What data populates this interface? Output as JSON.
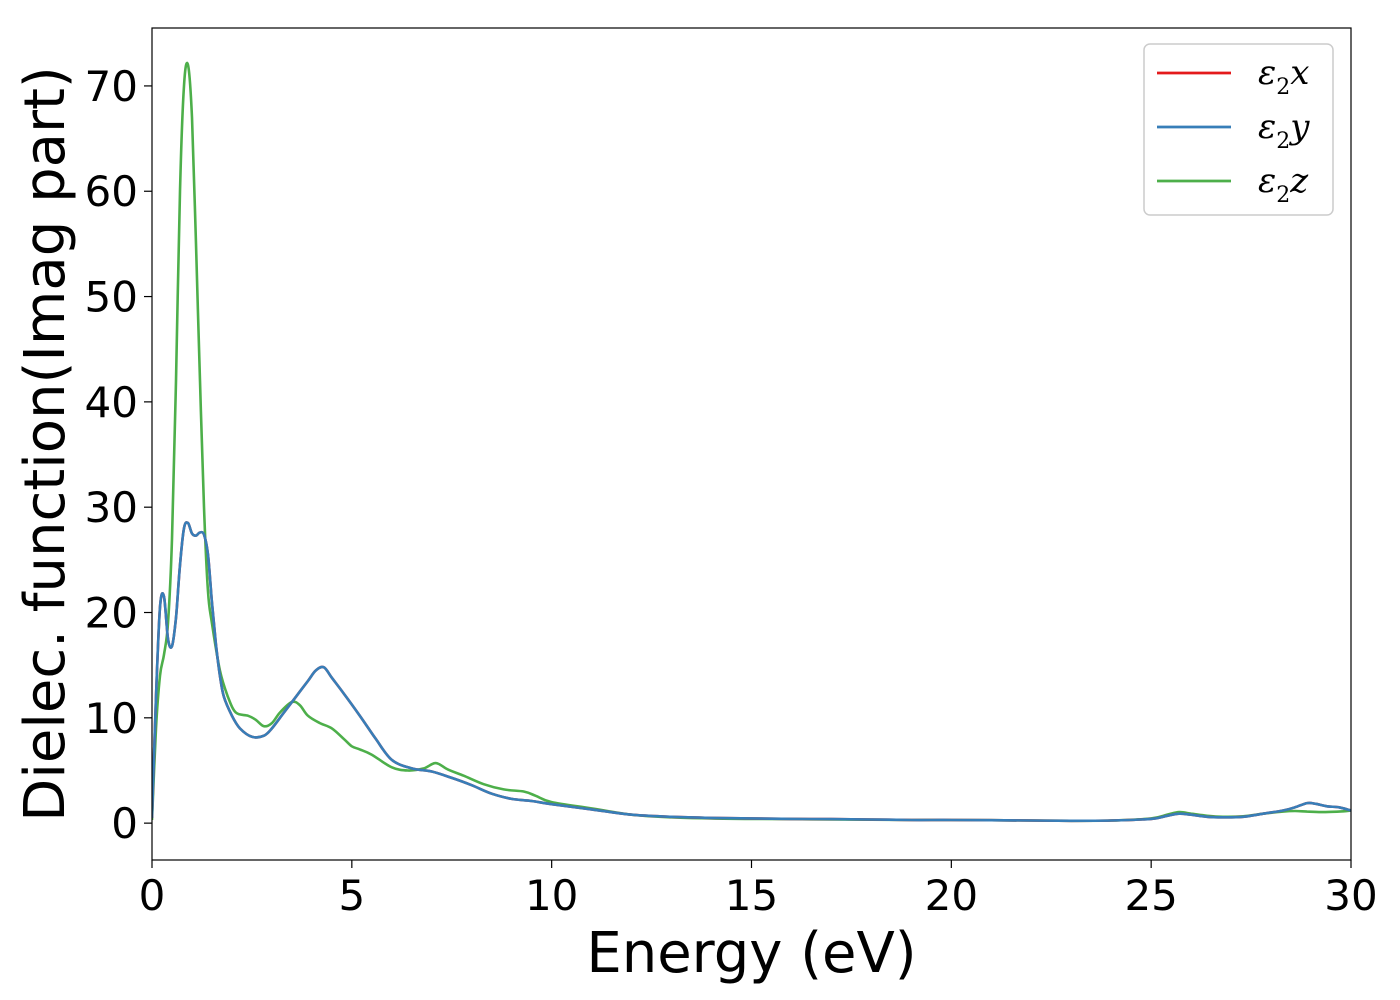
{
  "chart_data": {
    "type": "line",
    "xlabel": "Energy (eV)",
    "ylabel": "Dielec. function(Imag part)",
    "xlim": [
      0,
      30
    ],
    "ylim": [
      -3.5,
      75.5
    ],
    "xticks": [
      0,
      5,
      10,
      15,
      20,
      25,
      30
    ],
    "yticks": [
      0,
      10,
      20,
      30,
      40,
      50,
      60,
      70
    ],
    "grid": false,
    "legend_position": "top-right",
    "series": [
      {
        "name": "ε₂x",
        "legend": {
          "base": "ε",
          "sub": "2",
          "var": "x"
        },
        "color": "#e41a1c",
        "x": [
          0,
          0.1,
          0.2,
          0.3,
          0.4,
          0.5,
          0.6,
          0.7,
          0.8,
          0.9,
          1.0,
          1.1,
          1.2,
          1.3,
          1.4,
          1.5,
          1.6,
          1.7,
          1.8,
          2.0,
          2.2,
          2.5,
          2.8,
          3.0,
          3.3,
          3.6,
          3.9,
          4.1,
          4.3,
          4.5,
          4.8,
          5.2,
          5.6,
          6.0,
          6.5,
          7.0,
          7.5,
          8.0,
          8.5,
          9.0,
          9.5,
          10.0,
          11.0,
          12.0,
          13.0,
          14.0,
          15.0,
          16.0,
          17.0,
          18.0,
          19.0,
          20.0,
          21.0,
          22.0,
          23.0,
          24.0,
          25.0,
          25.4,
          25.7,
          26.0,
          26.4,
          26.8,
          27.3,
          27.8,
          28.3,
          28.6,
          28.9,
          29.1,
          29.4,
          29.7,
          30.0
        ],
        "y": [
          0.5,
          12,
          20.5,
          21.5,
          17.5,
          16.8,
          19.5,
          24.5,
          28.0,
          28.5,
          27.5,
          27.3,
          27.6,
          27.4,
          25.5,
          21.0,
          17.0,
          14.0,
          12.0,
          10.2,
          9.0,
          8.2,
          8.3,
          9.0,
          10.5,
          12.0,
          13.5,
          14.5,
          14.8,
          13.8,
          12.3,
          10.2,
          8.0,
          6.0,
          5.2,
          4.9,
          4.3,
          3.6,
          2.8,
          2.3,
          2.1,
          1.8,
          1.3,
          0.8,
          0.6,
          0.5,
          0.45,
          0.4,
          0.38,
          0.35,
          0.3,
          0.3,
          0.28,
          0.25,
          0.22,
          0.25,
          0.4,
          0.7,
          0.9,
          0.8,
          0.6,
          0.55,
          0.6,
          0.9,
          1.2,
          1.5,
          1.9,
          1.85,
          1.6,
          1.5,
          1.2
        ]
      },
      {
        "name": "ε₂y",
        "legend": {
          "base": "ε",
          "sub": "2",
          "var": "y"
        },
        "color": "#377eb8",
        "x": [
          0,
          0.1,
          0.2,
          0.3,
          0.4,
          0.5,
          0.6,
          0.7,
          0.8,
          0.9,
          1.0,
          1.1,
          1.2,
          1.3,
          1.4,
          1.5,
          1.6,
          1.7,
          1.8,
          2.0,
          2.2,
          2.5,
          2.8,
          3.0,
          3.3,
          3.6,
          3.9,
          4.1,
          4.3,
          4.5,
          4.8,
          5.2,
          5.6,
          6.0,
          6.5,
          7.0,
          7.5,
          8.0,
          8.5,
          9.0,
          9.5,
          10.0,
          11.0,
          12.0,
          13.0,
          14.0,
          15.0,
          16.0,
          17.0,
          18.0,
          19.0,
          20.0,
          21.0,
          22.0,
          23.0,
          24.0,
          25.0,
          25.4,
          25.7,
          26.0,
          26.4,
          26.8,
          27.3,
          27.8,
          28.3,
          28.6,
          28.9,
          29.1,
          29.4,
          29.7,
          30.0
        ],
        "y": [
          0.5,
          12,
          20.5,
          21.5,
          17.5,
          16.8,
          19.5,
          24.5,
          28.0,
          28.5,
          27.5,
          27.3,
          27.6,
          27.4,
          25.5,
          21.0,
          17.0,
          14.0,
          12.0,
          10.2,
          9.0,
          8.2,
          8.3,
          9.0,
          10.5,
          12.0,
          13.5,
          14.5,
          14.8,
          13.8,
          12.3,
          10.2,
          8.0,
          6.0,
          5.2,
          4.9,
          4.3,
          3.6,
          2.8,
          2.3,
          2.1,
          1.8,
          1.3,
          0.8,
          0.6,
          0.5,
          0.45,
          0.4,
          0.38,
          0.35,
          0.3,
          0.3,
          0.28,
          0.25,
          0.22,
          0.25,
          0.4,
          0.7,
          0.9,
          0.8,
          0.6,
          0.55,
          0.6,
          0.9,
          1.2,
          1.5,
          1.9,
          1.85,
          1.6,
          1.5,
          1.2
        ]
      },
      {
        "name": "ε₂z",
        "legend": {
          "base": "ε",
          "sub": "2",
          "var": "z"
        },
        "color": "#4daf4a",
        "x": [
          0,
          0.1,
          0.2,
          0.3,
          0.4,
          0.5,
          0.6,
          0.7,
          0.8,
          0.9,
          1.0,
          1.1,
          1.2,
          1.3,
          1.4,
          1.5,
          1.7,
          1.9,
          2.1,
          2.4,
          2.6,
          2.8,
          3.0,
          3.2,
          3.5,
          3.7,
          3.9,
          4.2,
          4.5,
          4.8,
          5.0,
          5.2,
          5.5,
          6.0,
          6.4,
          6.8,
          7.1,
          7.4,
          7.8,
          8.3,
          8.8,
          9.3,
          9.6,
          10.0,
          11.0,
          12.0,
          13.0,
          14.0,
          15.0,
          16.0,
          17.0,
          18.0,
          19.0,
          20.0,
          21.0,
          22.0,
          23.0,
          24.0,
          25.0,
          25.4,
          25.7,
          26.0,
          26.4,
          26.8,
          27.3,
          27.8,
          28.3,
          28.6,
          28.9,
          29.3,
          29.7,
          30.0
        ],
        "y": [
          0.3,
          9,
          14,
          16,
          19,
          27,
          42,
          60,
          70,
          72,
          67,
          55,
          42,
          30,
          22,
          19,
          14.5,
          12,
          10.5,
          10.2,
          9.8,
          9.2,
          9.5,
          10.5,
          11.5,
          11.2,
          10.2,
          9.5,
          9.0,
          8.0,
          7.3,
          7.0,
          6.5,
          5.3,
          5.0,
          5.2,
          5.7,
          5.1,
          4.5,
          3.7,
          3.2,
          3.0,
          2.6,
          2.0,
          1.4,
          0.8,
          0.55,
          0.45,
          0.4,
          0.38,
          0.35,
          0.33,
          0.3,
          0.3,
          0.28,
          0.25,
          0.22,
          0.25,
          0.45,
          0.8,
          1.05,
          0.9,
          0.7,
          0.6,
          0.65,
          0.9,
          1.1,
          1.15,
          1.1,
          1.05,
          1.1,
          1.2
        ]
      }
    ]
  }
}
